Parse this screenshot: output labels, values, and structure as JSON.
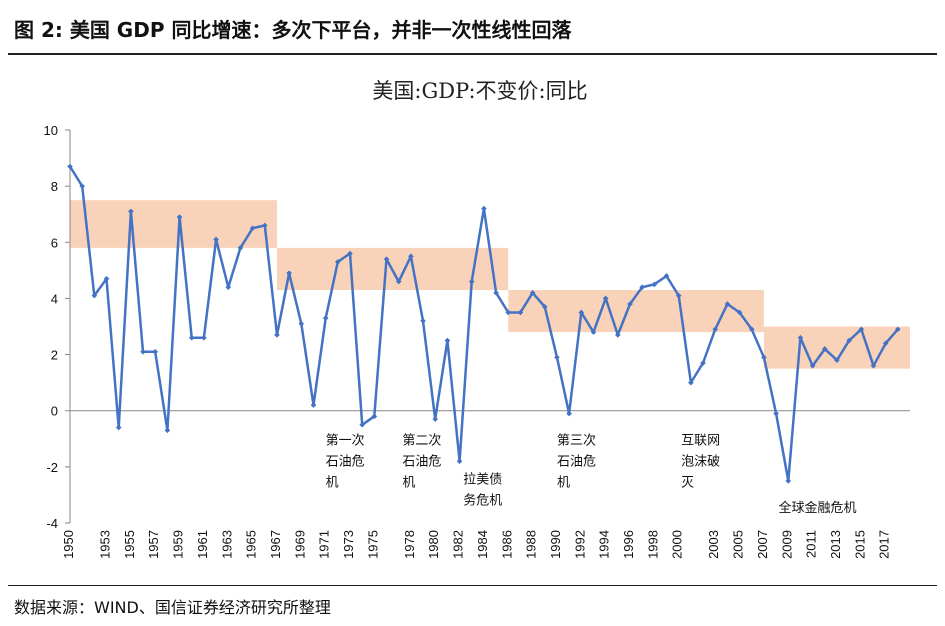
{
  "figure": {
    "title": "图 2:  美国 GDP 同比增速：多次下平台，并非一次性线性回落",
    "source": "数据来源：WIND、国信证券经济研究所整理"
  },
  "chart_data": {
    "type": "line",
    "title": "美国:GDP:不变价:同比",
    "xlabel": "",
    "ylabel": "",
    "ylim": [
      -4,
      10
    ],
    "yticks": [
      "10",
      "8",
      "6",
      "4",
      "2",
      "0",
      "-2",
      "-4"
    ],
    "grid": false,
    "color": "#4472C4",
    "band_color": "#F8CBAD",
    "x": [
      1950,
      1951,
      1952,
      1953,
      1954,
      1955,
      1956,
      1957,
      1958,
      1959,
      1960,
      1961,
      1962,
      1963,
      1964,
      1965,
      1966,
      1967,
      1968,
      1969,
      1970,
      1971,
      1972,
      1973,
      1974,
      1975,
      1976,
      1977,
      1978,
      1979,
      1980,
      1981,
      1982,
      1983,
      1984,
      1985,
      1986,
      1987,
      1988,
      1989,
      1990,
      1991,
      1992,
      1993,
      1994,
      1995,
      1996,
      1997,
      1998,
      1999,
      2000,
      2001,
      2002,
      2003,
      2004,
      2005,
      2006,
      2007,
      2008,
      2009,
      2010,
      2011,
      2012,
      2013,
      2014,
      2015,
      2016,
      2017,
      2018
    ],
    "values": [
      8.7,
      8.0,
      4.1,
      4.7,
      -0.6,
      7.1,
      2.1,
      2.1,
      -0.7,
      6.9,
      2.6,
      2.6,
      6.1,
      4.4,
      5.8,
      6.5,
      6.6,
      2.7,
      4.9,
      3.1,
      0.2,
      3.3,
      5.3,
      5.6,
      -0.5,
      -0.2,
      5.4,
      4.6,
      5.5,
      3.2,
      -0.3,
      2.5,
      -1.8,
      4.6,
      7.2,
      4.2,
      3.5,
      3.5,
      4.2,
      3.7,
      1.9,
      -0.1,
      3.5,
      2.8,
      4.0,
      2.7,
      3.8,
      4.4,
      4.5,
      4.8,
      4.1,
      1.0,
      1.7,
      2.9,
      3.8,
      3.5,
      2.9,
      1.9,
      -0.1,
      -2.5,
      2.6,
      1.6,
      2.2,
      1.8,
      2.5,
      2.9,
      1.6,
      2.4,
      2.9
    ],
    "xticks": [
      "1950",
      "1953",
      "1955",
      "1957",
      "1959",
      "1961",
      "1963",
      "1965",
      "1967",
      "1969",
      "1971",
      "1973",
      "1975",
      "1978",
      "1980",
      "1982",
      "1984",
      "1986",
      "1988",
      "1990",
      "1992",
      "1994",
      "1996",
      "1998",
      "2000",
      "2003",
      "2005",
      "2007",
      "2009",
      "2011",
      "2013",
      "2015",
      "2017"
    ],
    "bands": [
      {
        "x_start": 1950,
        "x_end": 1967,
        "y_low": 5.8,
        "y_high": 7.5
      },
      {
        "x_start": 1967,
        "x_end": 1986,
        "y_low": 4.3,
        "y_high": 5.8
      },
      {
        "x_start": 1986,
        "x_end": 2007,
        "y_low": 2.8,
        "y_high": 4.3
      },
      {
        "x_start": 2007,
        "x_end": 2019,
        "y_low": 1.5,
        "y_high": 3.0
      }
    ],
    "annotations": [
      {
        "lines": [
          "第一次",
          "石油危",
          "机"
        ],
        "x": 1971,
        "y": -1.2
      },
      {
        "lines": [
          "第二次",
          "石油危",
          "机"
        ],
        "x": 1977.3,
        "y": -1.2
      },
      {
        "lines": [
          "拉美债",
          "务危机"
        ],
        "x": 1982.3,
        "y": -2.6
      },
      {
        "lines": [
          "第三次",
          "石油危",
          "机"
        ],
        "x": 1990,
        "y": -1.2
      },
      {
        "lines": [
          "互联网",
          "泡沫破",
          "灭"
        ],
        "x": 2000.2,
        "y": -1.2
      },
      {
        "lines": [
          "全球金融危机"
        ],
        "x": 2008.2,
        "y": -3.6
      }
    ]
  }
}
